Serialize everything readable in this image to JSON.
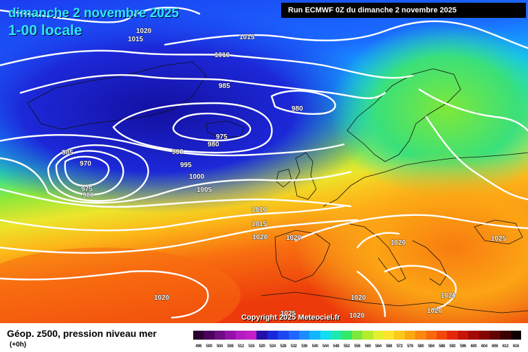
{
  "header": {
    "date_title": "dimanche 2 novembre 2025",
    "time_title": "1-00 locale",
    "run_info": "Run ECMWF 0Z du dimanche 2 novembre 2025"
  },
  "footer": {
    "copyright": "Copyright 2025 Meteociel.fr",
    "parameter": "Géop. z500, pression niveau mer",
    "forecast_step": "(+0h)"
  },
  "legend": {
    "values": [
      "496",
      "500",
      "504",
      "508",
      "512",
      "516",
      "520",
      "524",
      "528",
      "532",
      "536",
      "540",
      "544",
      "548",
      "552",
      "556",
      "560",
      "564",
      "568",
      "572",
      "576",
      "580",
      "584",
      "588",
      "592",
      "596",
      "600",
      "604",
      "608",
      "612",
      "616"
    ],
    "colors": [
      "#2a0030",
      "#4a005c",
      "#6e0c84",
      "#9412a8",
      "#b41cc4",
      "#c61ec6",
      "#2410a8",
      "#1a28d8",
      "#1c46f0",
      "#1e66ff",
      "#1a8cff",
      "#12b6ff",
      "#12dcf0",
      "#1ee8b0",
      "#32e868",
      "#7ee83a",
      "#b4ec2c",
      "#e4f02c",
      "#fce42c",
      "#fcc81c",
      "#fca812",
      "#fc8810",
      "#f8680c",
      "#f4480a",
      "#e42808",
      "#c81406",
      "#a40a06",
      "#840404",
      "#640202",
      "#3c0000",
      "#100000"
    ]
  },
  "isobar_labels": [
    {
      "text": "1020"
    },
    {
      "text": "1015"
    },
    {
      "text": "1015"
    },
    {
      "text": "1010"
    },
    {
      "text": "985"
    },
    {
      "text": "980"
    },
    {
      "text": "975"
    },
    {
      "text": "980"
    },
    {
      "text": "985"
    },
    {
      "text": "970"
    },
    {
      "text": "975"
    },
    {
      "text": "980"
    },
    {
      "text": "990"
    },
    {
      "text": "995"
    },
    {
      "text": "1000"
    },
    {
      "text": "1005"
    },
    {
      "text": "1010"
    },
    {
      "text": "1015"
    },
    {
      "text": "1020"
    },
    {
      "text": "1020"
    },
    {
      "text": "1020"
    },
    {
      "text": "1025"
    },
    {
      "text": "1020"
    },
    {
      "text": "1020"
    },
    {
      "text": "1020"
    },
    {
      "text": "1020"
    },
    {
      "text": "1020"
    },
    {
      "text": "1025"
    }
  ]
}
